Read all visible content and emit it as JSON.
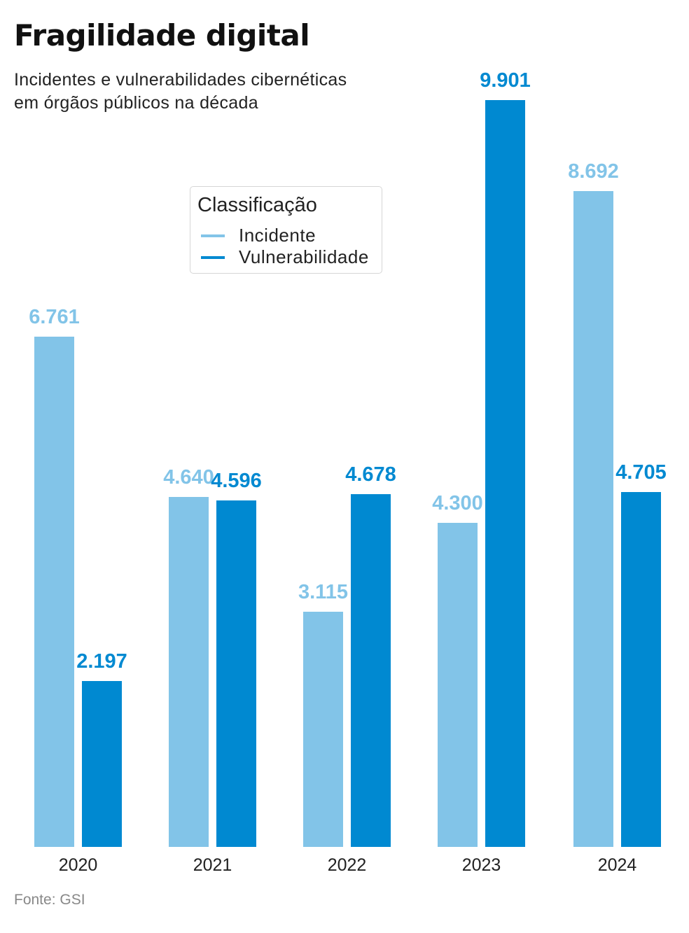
{
  "header": {
    "title": "Fragilidade digital",
    "subtitle_line1": "Incidentes e vulnerabilidades cibernéticas",
    "subtitle_line2": "em órgãos públicos na década"
  },
  "legend": {
    "title": "Classificação",
    "items": [
      {
        "label": "Incidente",
        "color": "#82c4e8"
      },
      {
        "label": "Vulnerabilidade",
        "color": "#0089d1"
      }
    ]
  },
  "source": "Fonte: GSI",
  "chart_data": {
    "type": "bar",
    "title": "Fragilidade digital",
    "subtitle": "Incidentes e vulnerabilidades cibernéticas em órgãos públicos na década",
    "categories": [
      "2020",
      "2021",
      "2022",
      "2023",
      "2024"
    ],
    "series": [
      {
        "name": "Incidente",
        "color": "#82c4e8",
        "values": [
          6761,
          4640,
          3115,
          4300,
          8692
        ],
        "labels": [
          "6.761",
          "4.640",
          "3.115",
          "4.300",
          "8.692"
        ]
      },
      {
        "name": "Vulnerabilidade",
        "color": "#0089d1",
        "values": [
          2197,
          4596,
          4678,
          9901,
          4705
        ],
        "labels": [
          "2.197",
          "4.596",
          "4.678",
          "9.901",
          "4.705"
        ]
      }
    ],
    "xlabel": "",
    "ylabel": "",
    "ylim": [
      0,
      10000
    ],
    "grid": false,
    "legend_title": "Classificação",
    "legend_position": "upper-center",
    "source": "Fonte: GSI"
  }
}
